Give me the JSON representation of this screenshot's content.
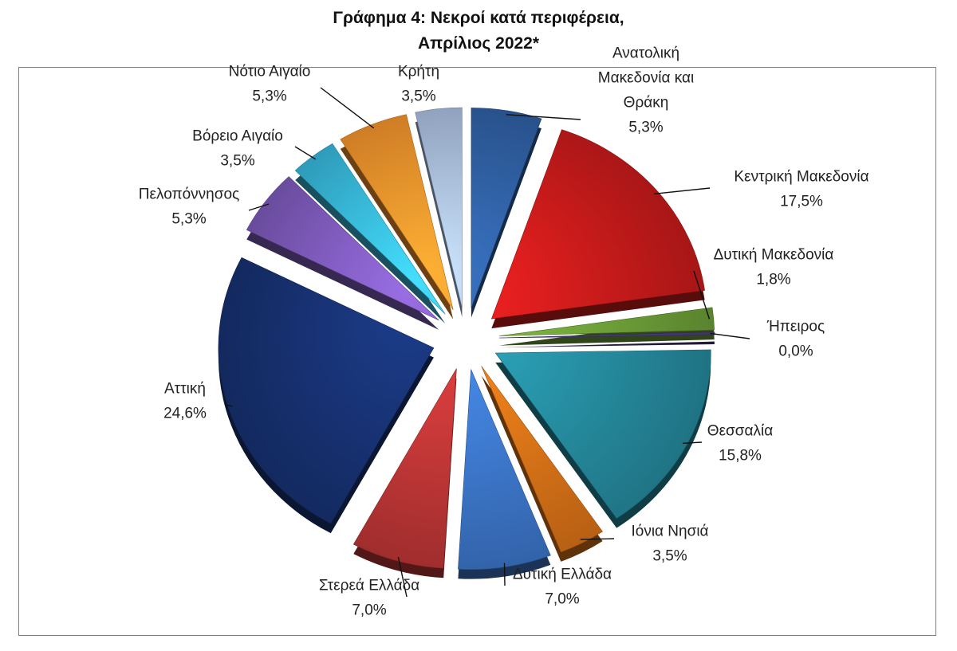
{
  "chart_data": {
    "type": "pie",
    "title_lines": [
      "Γράφημα 4: Νεκροί κατά περιφέρεια,",
      "Απρίλιος 2022*"
    ],
    "slices": [
      {
        "name_lines": [
          "Ανατολική",
          "Μακεδονία και",
          "Θράκη"
        ],
        "value": 5.3,
        "label": "5,3%",
        "color": "#2e5d9e"
      },
      {
        "name_lines": [
          "Κεντρική Μακεδονία"
        ],
        "value": 17.5,
        "label": "17,5%",
        "color": "#c41a1a"
      },
      {
        "name_lines": [
          "Δυτική Μακεδονία"
        ],
        "value": 1.8,
        "label": "1,8%",
        "color": "#6a9a36"
      },
      {
        "name_lines": [
          "Ήπειρος"
        ],
        "value": 0.0,
        "label": "0,0%",
        "color": "#4a3a80"
      },
      {
        "name_lines": [
          "Θεσσαλία"
        ],
        "value": 15.8,
        "label": "15,8%",
        "color": "#24879a"
      },
      {
        "name_lines": [
          "Ιόνια Νησιά"
        ],
        "value": 3.5,
        "label": "3,5%",
        "color": "#d46e16"
      },
      {
        "name_lines": [
          "Δυτική Ελλάδα"
        ],
        "value": 7.0,
        "label": "7,0%",
        "color": "#3a72c2"
      },
      {
        "name_lines": [
          "Στερεά Ελλάδα"
        ],
        "value": 7.0,
        "label": "7,0%",
        "color": "#b73434"
      },
      {
        "name_lines": [
          "Αττική"
        ],
        "value": 24.6,
        "label": "24,6%",
        "color": "#16306e"
      },
      {
        "name_lines": [
          "Πελοπόννησος"
        ],
        "value": 5.3,
        "label": "5,3%",
        "color": "#7a58b6"
      },
      {
        "name_lines": [
          "Βόρειο Αιγαίο"
        ],
        "value": 3.5,
        "label": "3,5%",
        "color": "#36b2d6"
      },
      {
        "name_lines": [
          "Νότιο Αιγαίο"
        ],
        "value": 5.3,
        "label": "5,3%",
        "color": "#f08e2a"
      },
      {
        "name_lines": [
          "Κρήτη"
        ],
        "value": 3.5,
        "label": "3,5%",
        "color": "#a4b8d8"
      }
    ],
    "legend": "none",
    "data_labels": "outside-with-leader-lines"
  }
}
